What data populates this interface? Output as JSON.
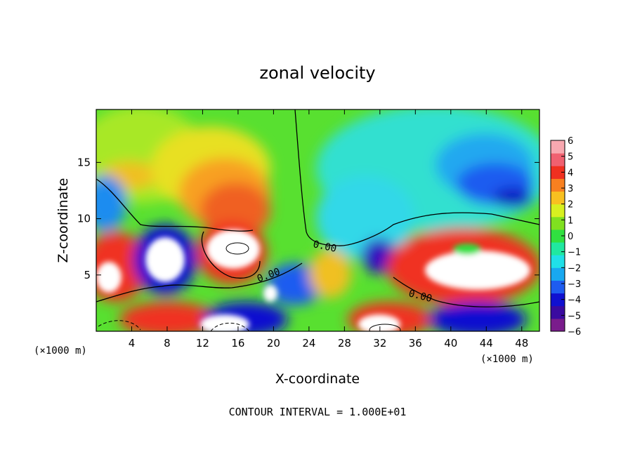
{
  "chart_data": {
    "type": "heatmap",
    "title": "zonal velocity",
    "xlabel": "X-coordinate",
    "ylabel": "Z-coordinate",
    "x_unit": "(×1000 m)",
    "x_unit_right": "(×1000 m)",
    "xlim": [
      0,
      50
    ],
    "ylim": [
      0,
      19.7
    ],
    "xticks": [
      4,
      8,
      12,
      16,
      20,
      24,
      28,
      32,
      36,
      40,
      44,
      48
    ],
    "yticks": [
      5,
      10,
      15
    ],
    "colorbar": {
      "min": -6,
      "max": 6,
      "ticks": [
        6,
        5,
        4,
        3,
        2,
        1,
        0,
        -1,
        -2,
        -3,
        -4,
        -5,
        -6
      ],
      "colors": [
        "#7a1c8c",
        "#3a0aa0",
        "#1010d0",
        "#1e5cf0",
        "#18a8f0",
        "#20e0e8",
        "#20e8a0",
        "#30e040",
        "#80e020",
        "#d8f020",
        "#f8c020",
        "#f88020",
        "#f03020",
        "#f06070",
        "#f8a8b0"
      ]
    },
    "contour_labels": [
      "0.00",
      "0.00",
      "0.00"
    ],
    "footer": "CONTOUR INTERVAL = 1.000E+01"
  }
}
